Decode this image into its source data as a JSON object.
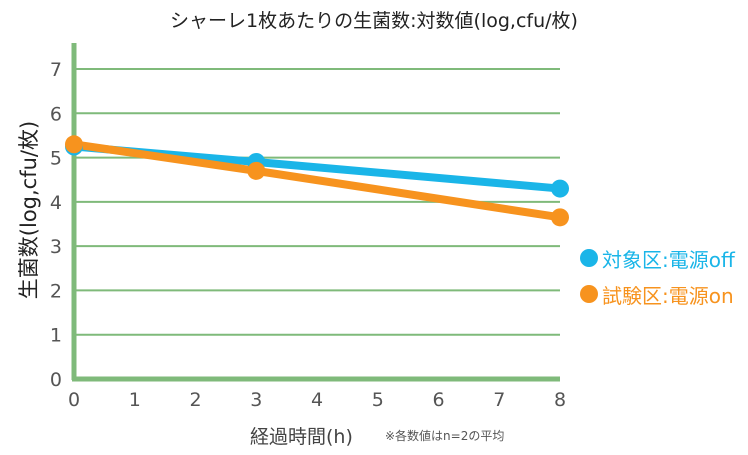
{
  "chart_data": {
    "type": "line",
    "title": "シャーレ1枚あたりの生菌数:対数値(log,cfu/枚)",
    "xlabel": "経過時間(h)",
    "ylabel": "生菌数(log,cfu/枚)",
    "note": "※各数値はn=2の平均",
    "xlim": [
      0,
      8
    ],
    "ylim": [
      0,
      7
    ],
    "xticks": [
      "0",
      "1",
      "2",
      "3",
      "4",
      "5",
      "6",
      "7",
      "8"
    ],
    "yticks": [
      "0",
      "1",
      "2",
      "3",
      "4",
      "5",
      "6",
      "7"
    ],
    "grid": "horizontal",
    "legend_position": "right",
    "series": [
      {
        "name": "対象区:電源off",
        "color": "#1ab5e8",
        "x": [
          0,
          3,
          8
        ],
        "y": [
          5.25,
          4.9,
          4.3
        ]
      },
      {
        "name": "試験区:電源on",
        "color": "#f7931e",
        "x": [
          0,
          3,
          8
        ],
        "y": [
          5.3,
          4.7,
          3.65
        ]
      }
    ]
  },
  "colors": {
    "axis": "#7fba7a",
    "grid": "#7fba7a",
    "tick_text": "#555555"
  }
}
